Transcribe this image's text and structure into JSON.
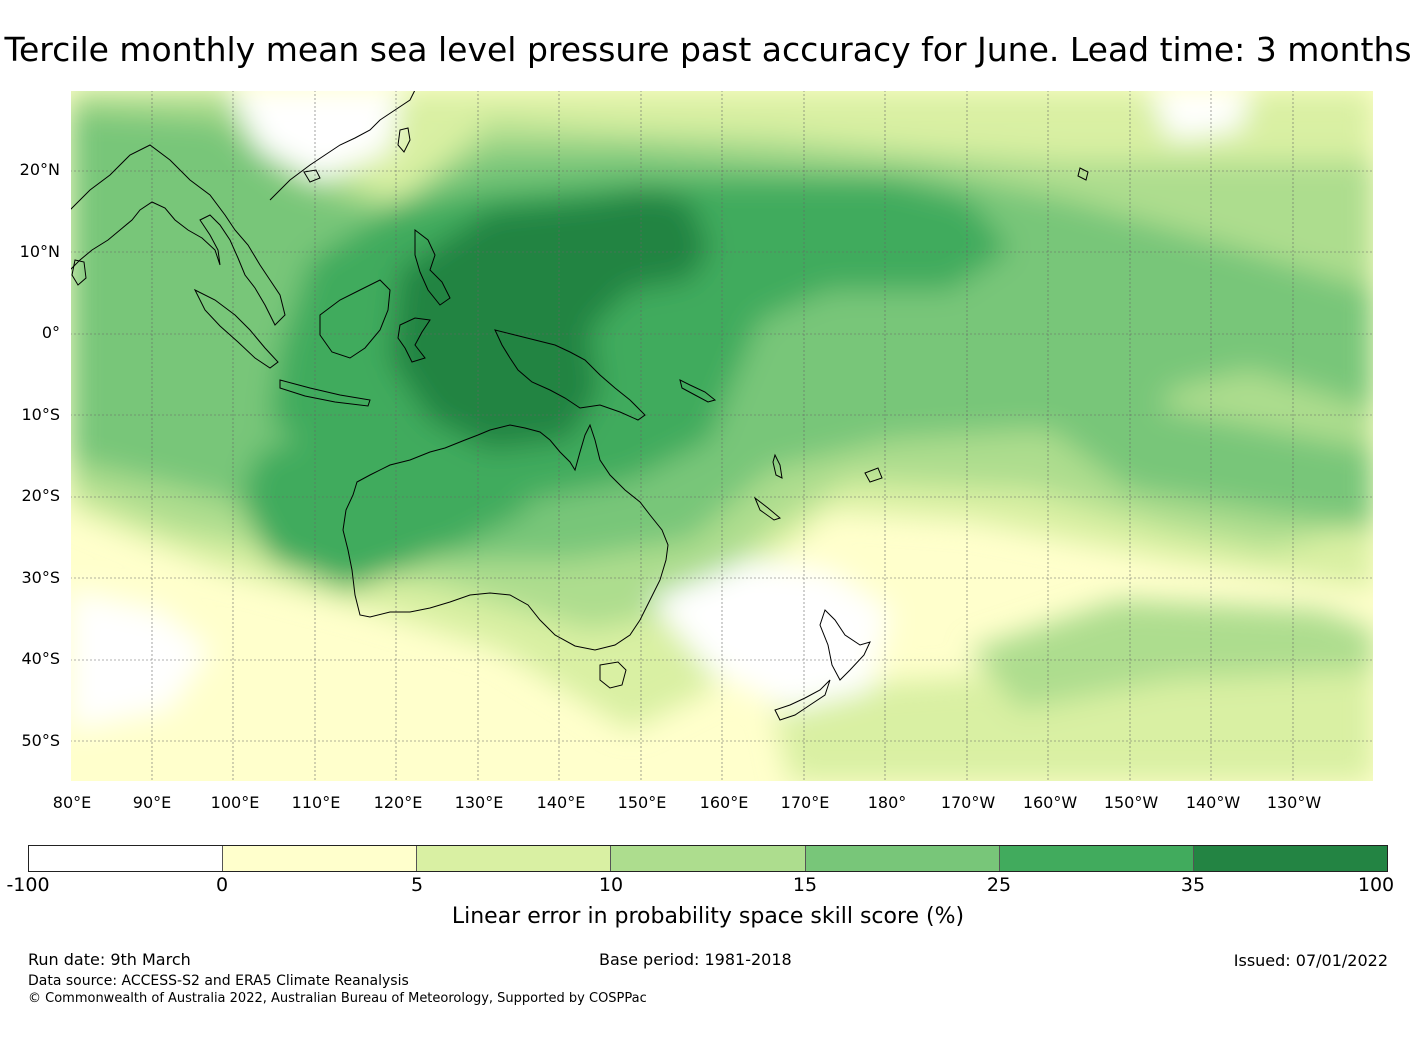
{
  "title": "Tercile monthly mean sea level pressure past accuracy for June. Lead time: 3 months",
  "map": {
    "lat_labels": [
      "20°N",
      "10°N",
      "0°",
      "10°S",
      "20°S",
      "30°S",
      "40°S",
      "50°S"
    ],
    "lon_labels": [
      "80°E",
      "90°E",
      "100°E",
      "110°E",
      "120°E",
      "130°E",
      "140°E",
      "150°E",
      "160°E",
      "170°E",
      "180°",
      "170°W",
      "160°W",
      "150°W",
      "140°W",
      "130°W"
    ],
    "lat_range": [
      -55,
      30
    ],
    "lon_range": [
      80,
      240
    ]
  },
  "colorbar": {
    "label": "Linear error in probability space skill score (%)",
    "ticks": [
      "-100",
      "0",
      "5",
      "10",
      "15",
      "25",
      "35",
      "100"
    ],
    "colors": [
      "#ffffff",
      "#ffffcc",
      "#d9f0a3",
      "#addd8e",
      "#78c679",
      "#41ab5d",
      "#238443"
    ]
  },
  "footer": {
    "run_date": "Run date: 9th March",
    "base_period": "Base period: 1981-2018",
    "issued": "Issued: 07/01/2022",
    "data_source": "Data source: ACCESS-S2 and ERA5 Climate Reanalysis",
    "copyright": "© Commonwealth of Australia 2022, Australian Bureau of Meteorology, Supported by COSPPac"
  }
}
